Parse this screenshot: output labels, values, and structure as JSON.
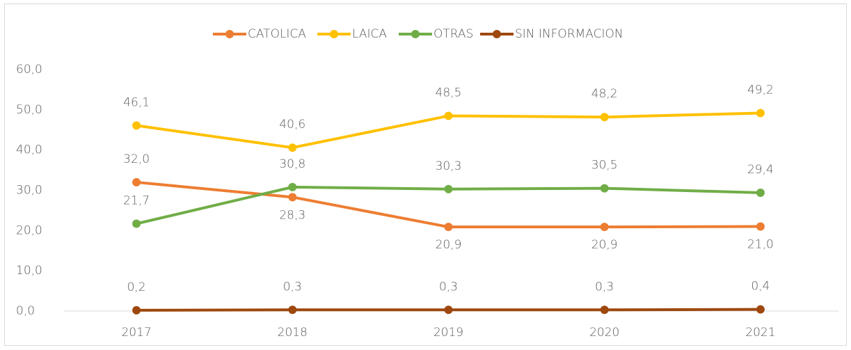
{
  "chart_data": {
    "type": "line",
    "categories": [
      "2017",
      "2018",
      "2019",
      "2020",
      "2021"
    ],
    "series": [
      {
        "name": "CATOLICA",
        "color": "#ED7D31",
        "values": [
          32.0,
          28.3,
          20.9,
          20.9,
          21.0
        ],
        "value_labels": [
          "32,0",
          "28,3",
          "20,9",
          "20,9",
          "21,0"
        ]
      },
      {
        "name": "LAICA",
        "color": "#FFC000",
        "values": [
          46.1,
          40.6,
          48.5,
          48.2,
          49.2
        ],
        "value_labels": [
          "46,1",
          "40,6",
          "48,5",
          "48,2",
          "49,2"
        ]
      },
      {
        "name": "OTRAS",
        "color": "#70AD47",
        "values": [
          21.7,
          30.8,
          30.3,
          30.5,
          29.4
        ],
        "value_labels": [
          "21,7",
          "30,8",
          "30,3",
          "30,5",
          "29,4"
        ]
      },
      {
        "name": "SIN INFORMACION",
        "color": "#9E480E",
        "values": [
          0.2,
          0.3,
          0.3,
          0.3,
          0.4
        ],
        "value_labels": [
          "0,2",
          "0,3",
          "0,3",
          "0,3",
          "0,4"
        ]
      }
    ],
    "ylim": [
      0,
      60
    ],
    "yticks": [
      {
        "value": 0,
        "label": "0,0"
      },
      {
        "value": 10,
        "label": "10,0"
      },
      {
        "value": 20,
        "label": "20,0"
      },
      {
        "value": 30,
        "label": "30,0"
      },
      {
        "value": 40,
        "label": "40,0"
      },
      {
        "value": 50,
        "label": "50,0"
      },
      {
        "value": 60,
        "label": "60,0"
      }
    ],
    "grid": false,
    "legend": "top"
  }
}
